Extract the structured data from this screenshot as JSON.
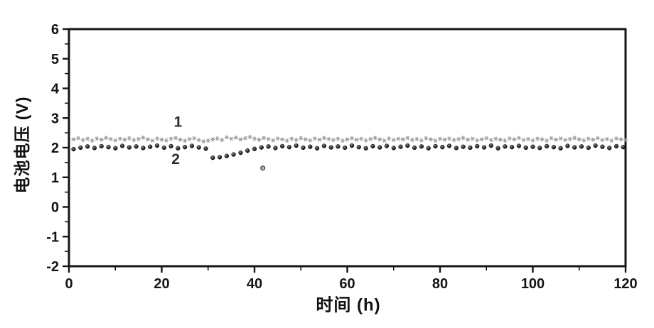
{
  "figure": {
    "background": "#ffffff",
    "axis_color": "#141414",
    "series1_color": "#9b9b9b",
    "series2_color": "#1c1c1c"
  },
  "chart_data": {
    "type": "scatter",
    "title": "",
    "xlabel": "时间 (h)",
    "ylabel": "电池电压 (V)",
    "xlim": [
      0,
      120
    ],
    "ylim": [
      -2,
      6
    ],
    "x_ticks": [
      0,
      20,
      40,
      60,
      80,
      100,
      120
    ],
    "y_ticks": [
      -2,
      -1,
      0,
      1,
      2,
      3,
      4,
      5,
      6
    ],
    "x_minor_ticks": [
      10,
      30,
      50,
      70,
      90,
      110
    ],
    "y_minor_step": 0.5,
    "grid": false,
    "legend_position": "none",
    "annotations": [
      {
        "text": "1",
        "x": 23.5,
        "y": 2.88
      },
      {
        "text": "2",
        "x": 23.0,
        "y": 1.62
      }
    ],
    "outlier_point": {
      "series": "2",
      "x": 41.8,
      "y": 1.31
    },
    "series": [
      {
        "name": "1",
        "marker": "star",
        "color": "#9b9b9b",
        "x": [
          1,
          2,
          3,
          4,
          5,
          6,
          7,
          8,
          9,
          10,
          11,
          12,
          13,
          14,
          15,
          16,
          17,
          18,
          19,
          20,
          21,
          22,
          23,
          24,
          25,
          26,
          27,
          28,
          29,
          30,
          31,
          32,
          33,
          34,
          35,
          36,
          37,
          38,
          39,
          40,
          41,
          42,
          43,
          44,
          45,
          46,
          47,
          48,
          49,
          50,
          51,
          52,
          53,
          54,
          55,
          56,
          57,
          58,
          59,
          60,
          61,
          62,
          63,
          64,
          65,
          66,
          67,
          68,
          69,
          70,
          71,
          72,
          73,
          74,
          75,
          76,
          77,
          78,
          79,
          80,
          81,
          82,
          83,
          84,
          85,
          86,
          87,
          88,
          89,
          90,
          91,
          92,
          93,
          94,
          95,
          96,
          97,
          98,
          99,
          100,
          101,
          102,
          103,
          104,
          105,
          106,
          107,
          108,
          109,
          110,
          111,
          112,
          113,
          114,
          115,
          116,
          117,
          118,
          119,
          120
        ],
        "y": [
          2.28,
          2.32,
          2.26,
          2.3,
          2.24,
          2.31,
          2.27,
          2.33,
          2.29,
          2.25,
          2.3,
          2.27,
          2.32,
          2.26,
          2.29,
          2.34,
          2.28,
          2.24,
          2.31,
          2.27,
          2.25,
          2.3,
          2.33,
          2.27,
          2.23,
          2.29,
          2.32,
          2.26,
          2.21,
          2.24,
          2.28,
          2.31,
          2.26,
          2.35,
          2.3,
          2.34,
          2.28,
          2.32,
          2.36,
          2.3,
          2.27,
          2.33,
          2.29,
          2.25,
          2.31,
          2.28,
          2.24,
          2.3,
          2.26,
          2.32,
          2.28,
          2.25,
          2.31,
          2.27,
          2.33,
          2.29,
          2.26,
          2.3,
          2.24,
          2.28,
          2.32,
          2.27,
          2.3,
          2.25,
          2.29,
          2.33,
          2.28,
          2.24,
          2.31,
          2.26,
          2.3,
          2.28,
          2.33,
          2.26,
          2.29,
          2.25,
          2.32,
          2.28,
          2.24,
          2.3,
          2.27,
          2.31,
          2.26,
          2.29,
          2.33,
          2.27,
          2.3,
          2.25,
          2.28,
          2.32,
          2.26,
          2.3,
          2.27,
          2.24,
          2.31,
          2.28,
          2.33,
          2.26,
          2.29,
          2.25,
          2.3,
          2.28,
          2.24,
          2.32,
          2.27,
          2.31,
          2.26,
          2.29,
          2.33,
          2.28,
          2.25,
          2.3,
          2.27,
          2.32,
          2.26,
          2.29,
          2.24,
          2.31,
          2.28,
          2.26
        ]
      },
      {
        "name": "2",
        "marker": "ball",
        "color": "#1c1c1c",
        "x": [
          1,
          2.5,
          4,
          5.5,
          7,
          8.5,
          10,
          11.5,
          13,
          14.5,
          16,
          17.5,
          19,
          20.5,
          22,
          23.5,
          25,
          26.5,
          28,
          29.5,
          31,
          32.5,
          34,
          35.5,
          37,
          38.5,
          40,
          41.5,
          43,
          44.5,
          46,
          47.5,
          49,
          50.5,
          52,
          53.5,
          55,
          56.5,
          58,
          59.5,
          61,
          62.5,
          64,
          65.5,
          67,
          68.5,
          70,
          71.5,
          73,
          74.5,
          76,
          77.5,
          79,
          80.5,
          82,
          83.5,
          85,
          86.5,
          88,
          89.5,
          91,
          92.5,
          94,
          95.5,
          97,
          98.5,
          100,
          101.5,
          103,
          104.5,
          106,
          107.5,
          109,
          110.5,
          112,
          113.5,
          115,
          116.5,
          118,
          119.5
        ],
        "y": [
          1.95,
          2.0,
          2.04,
          1.99,
          2.05,
          2.02,
          1.98,
          2.06,
          2.01,
          2.04,
          1.99,
          2.03,
          2.07,
          2.0,
          2.05,
          1.98,
          2.02,
          2.06,
          2.01,
          1.97,
          1.66,
          1.68,
          1.72,
          1.77,
          1.83,
          1.9,
          1.96,
          2.01,
          2.04,
          1.99,
          2.05,
          2.02,
          2.07,
          2.0,
          2.03,
          1.98,
          2.06,
          2.01,
          2.04,
          2.0,
          2.07,
          2.02,
          1.98,
          2.05,
          2.01,
          2.06,
          1.99,
          2.03,
          2.07,
          2.0,
          2.04,
          1.98,
          2.05,
          2.02,
          2.06,
          1.99,
          2.03,
          2.0,
          2.05,
          2.01,
          2.07,
          1.98,
          2.04,
          2.02,
          2.06,
          2.0,
          2.03,
          1.99,
          2.05,
          2.02,
          1.98,
          2.06,
          2.01,
          2.04,
          2.0,
          2.07,
          2.03,
          1.99,
          2.05,
          2.02
        ]
      }
    ]
  }
}
